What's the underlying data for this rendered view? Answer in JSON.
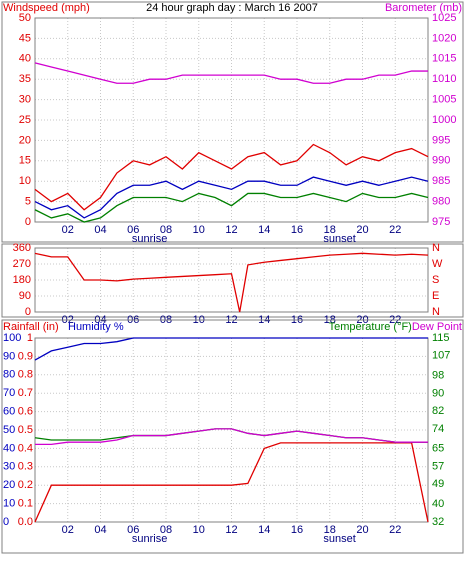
{
  "chart_data": [
    {
      "type": "line",
      "title": "24 hour graph day : March 16 2007",
      "ylabel": "Windspeed (mph)",
      "ycolor": "#e00000",
      "y2label": "Barometer (mb)",
      "y2color": "#d000d0",
      "x": [
        0,
        1,
        2,
        3,
        4,
        5,
        6,
        7,
        8,
        9,
        10,
        11,
        12,
        13,
        14,
        15,
        16,
        17,
        18,
        19,
        20,
        21,
        22,
        23,
        24
      ],
      "xlim": [
        0,
        24
      ],
      "xticks": [
        {
          "value": 2,
          "label": "02"
        },
        {
          "value": 4,
          "label": "04"
        },
        {
          "value": 6,
          "label": "06"
        },
        {
          "value": 8,
          "label": "08"
        },
        {
          "value": 10,
          "label": "10"
        },
        {
          "value": 12,
          "label": "12"
        },
        {
          "value": 14,
          "label": "14"
        },
        {
          "value": 16,
          "label": "16"
        },
        {
          "value": 18,
          "label": "18"
        },
        {
          "value": 20,
          "label": "20"
        },
        {
          "value": 22,
          "label": "22"
        }
      ],
      "ylim": [
        0,
        50
      ],
      "yticks": [
        0,
        5,
        10,
        15,
        20,
        25,
        30,
        35,
        40,
        45,
        50
      ],
      "y2lim": [
        975,
        1025
      ],
      "y2ticks": [
        975,
        980,
        985,
        990,
        995,
        1000,
        1005,
        1010,
        1015,
        1020,
        1025
      ],
      "annotations": [
        {
          "text": "sunrise",
          "x": 7
        },
        {
          "text": "sunset",
          "x": 18.6
        }
      ],
      "series": [
        {
          "color": "#e00000",
          "values": [
            8,
            5,
            7,
            3,
            6,
            12,
            15,
            14,
            16,
            13,
            17,
            15,
            13,
            16,
            17,
            14,
            15,
            19,
            17,
            14,
            16,
            15,
            17,
            18,
            16
          ]
        },
        {
          "color": "#0000c0",
          "values": [
            5,
            3,
            4,
            1,
            3,
            7,
            9,
            9,
            10,
            8,
            10,
            9,
            8,
            10,
            10,
            9,
            9,
            11,
            10,
            9,
            10,
            9,
            10,
            11,
            10
          ]
        },
        {
          "color": "#008000",
          "values": [
            3,
            1,
            2,
            0,
            1,
            4,
            6,
            6,
            6,
            5,
            7,
            6,
            4,
            7,
            7,
            6,
            6,
            7,
            6,
            5,
            7,
            6,
            6,
            7,
            6
          ]
        },
        {
          "color": "#d000d0",
          "axis": "y2",
          "values": [
            1014,
            1013,
            1012,
            1011,
            1010,
            1009,
            1009,
            1010,
            1010,
            1011,
            1011,
            1011,
            1011,
            1011,
            1011,
            1010,
            1010,
            1009,
            1009,
            1010,
            1010,
            1011,
            1011,
            1012,
            1012
          ]
        }
      ]
    },
    {
      "type": "line",
      "ycolor": "#e00000",
      "y2color": "#e00000",
      "x": [
        0,
        1,
        2,
        3,
        4,
        5,
        6,
        7,
        8,
        9,
        10,
        11,
        12,
        12.5,
        13,
        14,
        15,
        16,
        17,
        18,
        19,
        20,
        21,
        22,
        23,
        24
      ],
      "xlim": [
        0,
        24
      ],
      "xticks": [
        {
          "value": 2,
          "label": "02"
        },
        {
          "value": 4,
          "label": "04"
        },
        {
          "value": 6,
          "label": "06"
        },
        {
          "value": 8,
          "label": "08"
        },
        {
          "value": 10,
          "label": "10"
        },
        {
          "value": 12,
          "label": "12"
        },
        {
          "value": 14,
          "label": "14"
        },
        {
          "value": 16,
          "label": "16"
        },
        {
          "value": 18,
          "label": "18"
        },
        {
          "value": 20,
          "label": "20"
        },
        {
          "value": 22,
          "label": "22"
        }
      ],
      "ylim": [
        0,
        360
      ],
      "yticks": [
        0,
        90,
        180,
        270,
        360
      ],
      "y2lim": [
        0,
        360
      ],
      "y2ticks": [
        {
          "value": 0,
          "label": "N"
        },
        {
          "value": 90,
          "label": "E"
        },
        {
          "value": 180,
          "label": "S"
        },
        {
          "value": 270,
          "label": "W"
        },
        {
          "value": 360,
          "label": "N"
        }
      ],
      "series": [
        {
          "color": "#e00000",
          "values": [
            330,
            310,
            310,
            180,
            180,
            175,
            185,
            190,
            195,
            200,
            205,
            210,
            215,
            0,
            265,
            280,
            290,
            300,
            310,
            320,
            325,
            330,
            325,
            320,
            325,
            320
          ]
        }
      ]
    },
    {
      "type": "line",
      "ylabel": "Humidity %",
      "ycolor": "#0000c0",
      "y3label": "Rainfall (in)",
      "y3color": "#e00000",
      "y2label": "Temperature (°F)",
      "y2color": "#008000",
      "x": [
        0,
        1,
        2,
        3,
        4,
        5,
        6,
        7,
        8,
        9,
        10,
        11,
        12,
        13,
        14,
        15,
        16,
        17,
        18,
        19,
        20,
        21,
        22,
        23,
        24
      ],
      "xlim": [
        0,
        24
      ],
      "xticks": [
        {
          "value": 2,
          "label": "02"
        },
        {
          "value": 4,
          "label": "04"
        },
        {
          "value": 6,
          "label": "06"
        },
        {
          "value": 8,
          "label": "08"
        },
        {
          "value": 10,
          "label": "10"
        },
        {
          "value": 12,
          "label": "12"
        },
        {
          "value": 14,
          "label": "14"
        },
        {
          "value": 16,
          "label": "16"
        },
        {
          "value": 18,
          "label": "18"
        },
        {
          "value": 20,
          "label": "20"
        },
        {
          "value": 22,
          "label": "22"
        }
      ],
      "ylim": [
        0,
        100
      ],
      "yticks": [
        0,
        10,
        20,
        30,
        40,
        50,
        60,
        70,
        80,
        90,
        100
      ],
      "y3lim": [
        0,
        1
      ],
      "y3ticks": [
        {
          "value": 0,
          "label": "0.0"
        },
        0.1,
        0.2,
        0.3,
        0.4,
        0.5,
        0.6,
        0.7,
        0.8,
        0.9,
        1
      ],
      "y2lim": [
        32,
        115
      ],
      "y2ticks": [
        32,
        40,
        49,
        57,
        65,
        74,
        82,
        90,
        98,
        107,
        115
      ],
      "annotations": [
        {
          "text": "sunrise",
          "x": 7
        },
        {
          "text": "sunset",
          "x": 18.6
        }
      ],
      "series": [
        {
          "color": "#0000c0",
          "values": [
            88,
            93,
            95,
            97,
            97,
            98,
            100,
            100,
            100,
            100,
            100,
            100,
            100,
            100,
            100,
            100,
            100,
            100,
            100,
            100,
            100,
            100,
            100,
            100,
            100
          ]
        },
        {
          "color": "#e00000",
          "axis": "y3",
          "values": [
            0,
            0.2,
            0.2,
            0.2,
            0.2,
            0.2,
            0.2,
            0.2,
            0.2,
            0.2,
            0.2,
            0.2,
            0.2,
            0.21,
            0.4,
            0.43,
            0.43,
            0.43,
            0.43,
            0.43,
            0.43,
            0.43,
            0.43,
            0.43,
            0
          ]
        },
        {
          "color": "#008000",
          "axis": "y2",
          "values": [
            70,
            69,
            69,
            69,
            69,
            70,
            71,
            71,
            71,
            72,
            73,
            74,
            74,
            72,
            71,
            72,
            73,
            72,
            71,
            70,
            70,
            69,
            68,
            68,
            68
          ]
        },
        {
          "name": "Dew Point",
          "color": "#d000d0",
          "axis": "y2",
          "values": [
            67,
            67,
            68,
            68,
            68,
            69,
            71,
            71,
            71,
            72,
            73,
            74,
            74,
            72,
            71,
            72,
            73,
            72,
            71,
            70,
            70,
            69,
            68,
            68,
            68
          ]
        }
      ]
    }
  ]
}
